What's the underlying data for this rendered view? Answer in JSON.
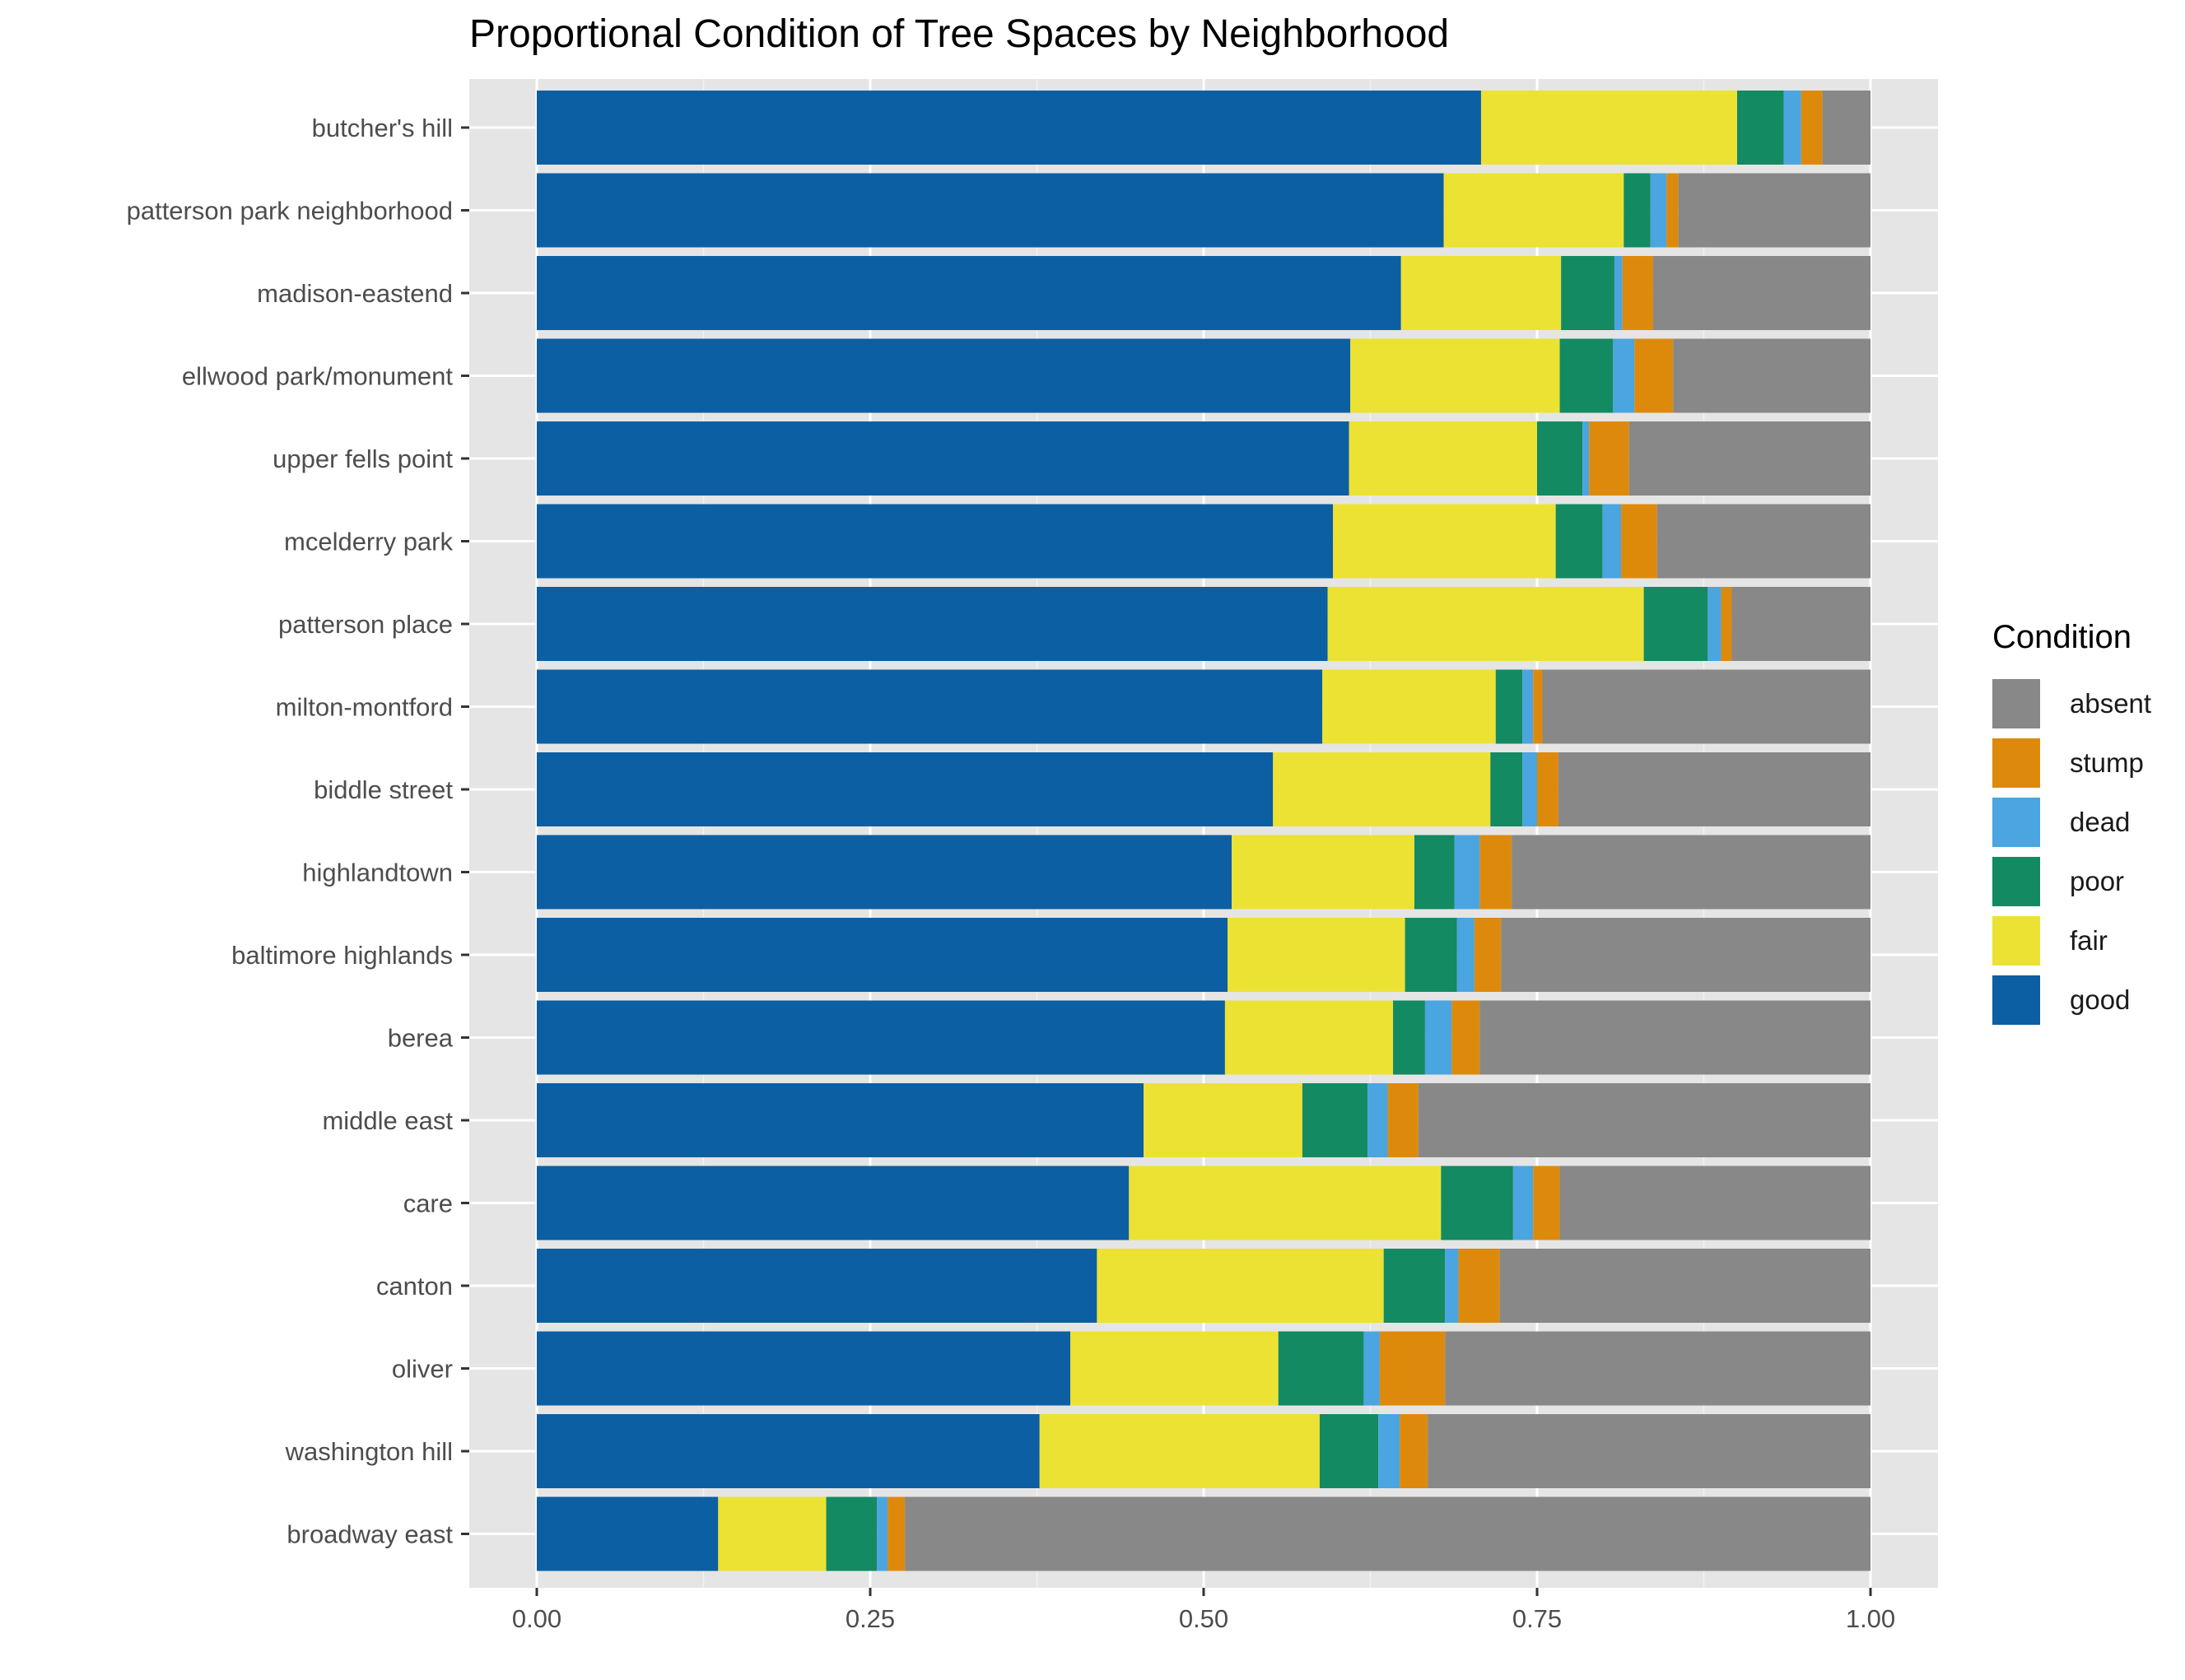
{
  "chart_data": {
    "type": "bar",
    "orientation": "horizontal",
    "stacked": true,
    "title": "Proportional Condition of Tree Spaces by Neighborhood",
    "xlabel": "",
    "ylabel": "",
    "xlim": [
      0,
      1
    ],
    "x_ticks": [
      "0.00",
      "0.25",
      "0.50",
      "0.75",
      "1.00"
    ],
    "grid": true,
    "legend_position": "right",
    "legend_title": "Condition",
    "categories": [
      "butcher's hill",
      "patterson park neighborhood",
      "madison-eastend",
      "ellwood park/monument",
      "upper fells point",
      "mcelderry park",
      "patterson place",
      "milton-montford",
      "biddle street",
      "highlandtown",
      "baltimore highlands",
      "berea",
      "middle east",
      "care",
      "canton",
      "oliver",
      "washington hill",
      "broadway east"
    ],
    "series": [
      {
        "name": "good",
        "color": "#0c5fa3",
        "values": [
          0.708,
          0.68,
          0.648,
          0.61,
          0.609,
          0.597,
          0.593,
          0.589,
          0.552,
          0.521,
          0.518,
          0.516,
          0.455,
          0.444,
          0.42,
          0.4,
          0.377,
          0.136
        ]
      },
      {
        "name": "fair",
        "color": "#ece234",
        "values": [
          0.192,
          0.135,
          0.12,
          0.157,
          0.141,
          0.167,
          0.237,
          0.13,
          0.163,
          0.137,
          0.133,
          0.126,
          0.119,
          0.234,
          0.215,
          0.156,
          0.21,
          0.081
        ]
      },
      {
        "name": "poor",
        "color": "#138a62",
        "values": [
          0.035,
          0.02,
          0.04,
          0.04,
          0.034,
          0.035,
          0.048,
          0.02,
          0.024,
          0.03,
          0.039,
          0.024,
          0.049,
          0.054,
          0.046,
          0.064,
          0.044,
          0.038
        ]
      },
      {
        "name": "dead",
        "color": "#4aa5e0",
        "values": [
          0.013,
          0.012,
          0.006,
          0.016,
          0.005,
          0.014,
          0.01,
          0.008,
          0.011,
          0.019,
          0.013,
          0.02,
          0.015,
          0.015,
          0.01,
          0.012,
          0.016,
          0.008
        ]
      },
      {
        "name": "stump",
        "color": "#dd8a0c",
        "values": [
          0.016,
          0.009,
          0.023,
          0.029,
          0.03,
          0.027,
          0.008,
          0.007,
          0.016,
          0.024,
          0.02,
          0.021,
          0.023,
          0.02,
          0.031,
          0.049,
          0.021,
          0.013
        ]
      },
      {
        "name": "absent",
        "color": "#888888",
        "values": [
          0.036,
          0.144,
          0.163,
          0.148,
          0.181,
          0.16,
          0.104,
          0.246,
          0.234,
          0.269,
          0.277,
          0.293,
          0.339,
          0.233,
          0.278,
          0.319,
          0.332,
          0.724
        ]
      }
    ],
    "legend_order": [
      "absent",
      "stump",
      "dead",
      "poor",
      "fair",
      "good"
    ]
  }
}
